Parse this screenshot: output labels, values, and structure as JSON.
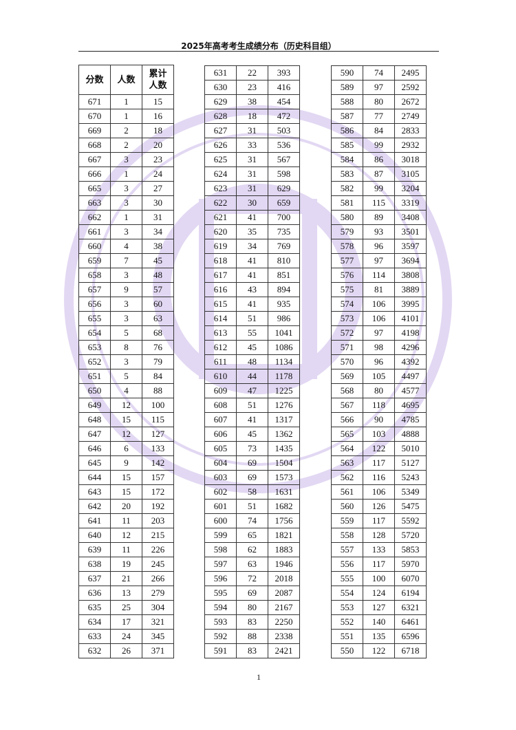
{
  "title": "2025年高考考生成绩分布（历史科目组）",
  "headers": [
    "分数",
    "人数",
    "累计\n人数"
  ],
  "watermark": {
    "text": "www.eeafj.cn",
    "color": "#c9b6e4"
  },
  "page_number": "1",
  "tables": [
    [
      [
        671,
        1,
        15
      ],
      [
        670,
        1,
        16
      ],
      [
        669,
        2,
        18
      ],
      [
        668,
        2,
        20
      ],
      [
        667,
        3,
        23
      ],
      [
        666,
        1,
        24
      ],
      [
        665,
        3,
        27
      ],
      [
        663,
        3,
        30
      ],
      [
        662,
        1,
        31
      ],
      [
        661,
        3,
        34
      ],
      [
        660,
        4,
        38
      ],
      [
        659,
        7,
        45
      ],
      [
        658,
        3,
        48
      ],
      [
        657,
        9,
        57
      ],
      [
        656,
        3,
        60
      ],
      [
        655,
        3,
        63
      ],
      [
        654,
        5,
        68
      ],
      [
        653,
        8,
        76
      ],
      [
        652,
        3,
        79
      ],
      [
        651,
        5,
        84
      ],
      [
        650,
        4,
        88
      ],
      [
        649,
        12,
        100
      ],
      [
        648,
        15,
        115
      ],
      [
        647,
        12,
        127
      ],
      [
        646,
        6,
        133
      ],
      [
        645,
        9,
        142
      ],
      [
        644,
        15,
        157
      ],
      [
        643,
        15,
        172
      ],
      [
        642,
        20,
        192
      ],
      [
        641,
        11,
        203
      ],
      [
        640,
        12,
        215
      ],
      [
        639,
        11,
        226
      ],
      [
        638,
        19,
        245
      ],
      [
        637,
        21,
        266
      ],
      [
        636,
        13,
        279
      ],
      [
        635,
        25,
        304
      ],
      [
        634,
        17,
        321
      ],
      [
        633,
        24,
        345
      ],
      [
        632,
        26,
        371
      ]
    ],
    [
      [
        631,
        22,
        393
      ],
      [
        630,
        23,
        416
      ],
      [
        629,
        38,
        454
      ],
      [
        628,
        18,
        472
      ],
      [
        627,
        31,
        503
      ],
      [
        626,
        33,
        536
      ],
      [
        625,
        31,
        567
      ],
      [
        624,
        31,
        598
      ],
      [
        623,
        31,
        629
      ],
      [
        622,
        30,
        659
      ],
      [
        621,
        41,
        700
      ],
      [
        620,
        35,
        735
      ],
      [
        619,
        34,
        769
      ],
      [
        618,
        41,
        810
      ],
      [
        617,
        41,
        851
      ],
      [
        616,
        43,
        894
      ],
      [
        615,
        41,
        935
      ],
      [
        614,
        51,
        986
      ],
      [
        613,
        55,
        1041
      ],
      [
        612,
        45,
        1086
      ],
      [
        611,
        48,
        1134
      ],
      [
        610,
        44,
        1178
      ],
      [
        609,
        47,
        1225
      ],
      [
        608,
        51,
        1276
      ],
      [
        607,
        41,
        1317
      ],
      [
        606,
        45,
        1362
      ],
      [
        605,
        73,
        1435
      ],
      [
        604,
        69,
        1504
      ],
      [
        603,
        69,
        1573
      ],
      [
        602,
        58,
        1631
      ],
      [
        601,
        51,
        1682
      ],
      [
        600,
        74,
        1756
      ],
      [
        599,
        65,
        1821
      ],
      [
        598,
        62,
        1883
      ],
      [
        597,
        63,
        1946
      ],
      [
        596,
        72,
        2018
      ],
      [
        595,
        69,
        2087
      ],
      [
        594,
        80,
        2167
      ],
      [
        593,
        83,
        2250
      ],
      [
        592,
        88,
        2338
      ],
      [
        591,
        83,
        2421
      ]
    ],
    [
      [
        590,
        74,
        2495
      ],
      [
        589,
        97,
        2592
      ],
      [
        588,
        80,
        2672
      ],
      [
        587,
        77,
        2749
      ],
      [
        586,
        84,
        2833
      ],
      [
        585,
        99,
        2932
      ],
      [
        584,
        86,
        3018
      ],
      [
        583,
        87,
        3105
      ],
      [
        582,
        99,
        3204
      ],
      [
        581,
        115,
        3319
      ],
      [
        580,
        89,
        3408
      ],
      [
        579,
        93,
        3501
      ],
      [
        578,
        96,
        3597
      ],
      [
        577,
        97,
        3694
      ],
      [
        576,
        114,
        3808
      ],
      [
        575,
        81,
        3889
      ],
      [
        574,
        106,
        3995
      ],
      [
        573,
        106,
        4101
      ],
      [
        572,
        97,
        4198
      ],
      [
        571,
        98,
        4296
      ],
      [
        570,
        96,
        4392
      ],
      [
        569,
        105,
        4497
      ],
      [
        568,
        80,
        4577
      ],
      [
        567,
        118,
        4695
      ],
      [
        566,
        90,
        4785
      ],
      [
        565,
        103,
        4888
      ],
      [
        564,
        122,
        5010
      ],
      [
        563,
        117,
        5127
      ],
      [
        562,
        116,
        5243
      ],
      [
        561,
        106,
        5349
      ],
      [
        560,
        126,
        5475
      ],
      [
        559,
        117,
        5592
      ],
      [
        558,
        128,
        5720
      ],
      [
        557,
        133,
        5853
      ],
      [
        556,
        117,
        5970
      ],
      [
        555,
        100,
        6070
      ],
      [
        554,
        124,
        6194
      ],
      [
        553,
        127,
        6321
      ],
      [
        552,
        140,
        6461
      ],
      [
        551,
        135,
        6596
      ],
      [
        550,
        122,
        6718
      ]
    ]
  ]
}
